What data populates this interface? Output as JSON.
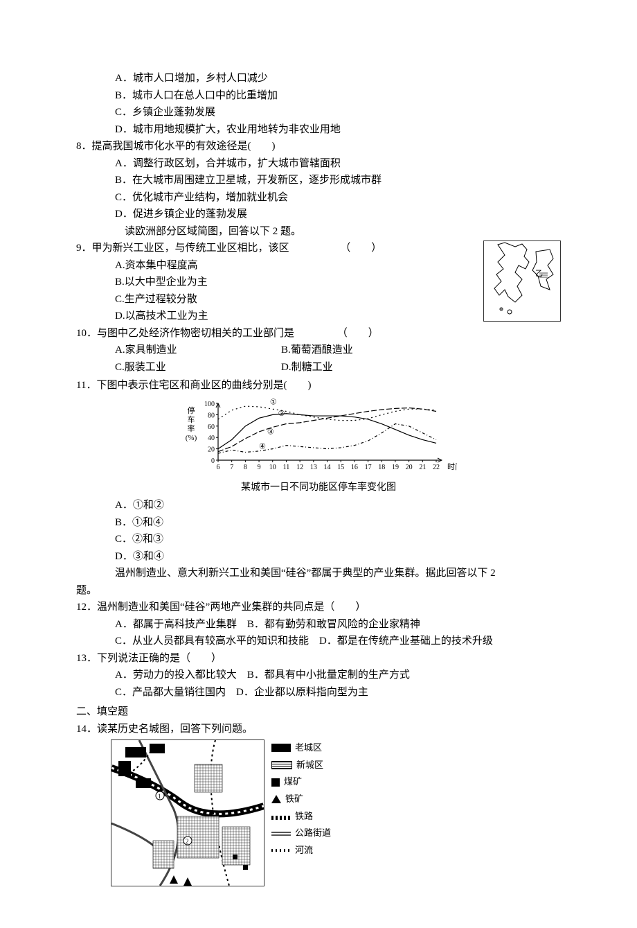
{
  "q7": {
    "A": "A．城市人口增加，乡村人口减少",
    "B": "B．城市人口在总人口中的比重增加",
    "C": "C．乡镇企业蓬勃发展",
    "D": "D．城市用地规模扩大，农业用地转为非农业用地"
  },
  "q8": {
    "stem": "8．提高我国城市化水平的有效途径是(　　)",
    "A": "A．调整行政区划，合并城市，扩大城市管辖面积",
    "B": "B．在大城市周围建立卫星城，开发新区，逐步形成城市群",
    "C": "C．优化城市产业结构，增加就业机会",
    "D": "D．促进乡镇企业的蓬勃发展",
    "lead": "读欧洲部分区域简图，回答以下 2 题。"
  },
  "q9": {
    "stem": "9．甲为新兴工业区，与传统工业区相比，该区",
    "paren": "（　　）",
    "A": "A.资本集中程度高",
    "B": "B.以大中型企业为主",
    "C": "C.生产过程较分散",
    "D": "D.以高技术工业为主"
  },
  "q10": {
    "stem": "10．与图中乙处经济作物密切相关的工业部门是",
    "paren": "（　　）",
    "A": "A.家具制造业",
    "B": "B.葡萄酒酿造业",
    "C": "C.服装工业",
    "D": "D.制糖工业"
  },
  "q11": {
    "stem": "11．下图中表示住宅区和商业区的曲线分别是(　　)",
    "A": "A．①和②",
    "B": "B．①和④",
    "C": "C．②和③",
    "D": "D．③和④",
    "caption": "某城市一日不同功能区停车率变化图",
    "chart": {
      "type": "line",
      "ylabel_lines": [
        "停",
        "车",
        "率",
        "(%)"
      ],
      "xlabel_lines": [
        "时间"
      ],
      "xticks": [
        "6",
        "7",
        "8",
        "9",
        "10",
        "11",
        "12",
        "13",
        "14",
        "15",
        "16",
        "17",
        "18",
        "19",
        "20",
        "21",
        "22"
      ],
      "yticks": [
        0,
        20,
        40,
        60,
        80,
        100
      ],
      "ylim": [
        0,
        100
      ],
      "background_color": "#ffffff",
      "axis_color": "#000000",
      "series_labels": [
        "①",
        "②",
        "③",
        "④"
      ],
      "series": {
        "s1": {
          "dash": "2,4",
          "width": 1.2,
          "points": [
            [
              6,
              72
            ],
            [
              7,
              88
            ],
            [
              8,
              95
            ],
            [
              9,
              94
            ],
            [
              10,
              90
            ],
            [
              11,
              86
            ],
            [
              12,
              80
            ],
            [
              13,
              76
            ],
            [
              14,
              72
            ],
            [
              15,
              70
            ],
            [
              16,
              70
            ],
            [
              17,
              73
            ],
            [
              18,
              80
            ],
            [
              19,
              86
            ],
            [
              20,
              90
            ],
            [
              21,
              90
            ],
            [
              22,
              88
            ]
          ]
        },
        "s2": {
          "dash": "none",
          "width": 1.2,
          "points": [
            [
              6,
              20
            ],
            [
              7,
              36
            ],
            [
              8,
              60
            ],
            [
              9,
              74
            ],
            [
              10,
              80
            ],
            [
              11,
              82
            ],
            [
              12,
              80
            ],
            [
              13,
              78
            ],
            [
              14,
              78
            ],
            [
              15,
              78
            ],
            [
              16,
              76
            ],
            [
              17,
              72
            ],
            [
              18,
              64
            ],
            [
              19,
              54
            ],
            [
              20,
              44
            ],
            [
              21,
              36
            ],
            [
              22,
              30
            ]
          ]
        },
        "s3": {
          "dash": "8,3",
          "width": 1.2,
          "points": [
            [
              6,
              15
            ],
            [
              7,
              24
            ],
            [
              8,
              38
            ],
            [
              9,
              50
            ],
            [
              10,
              58
            ],
            [
              11,
              64
            ],
            [
              12,
              66
            ],
            [
              13,
              70
            ],
            [
              14,
              74
            ],
            [
              15,
              78
            ],
            [
              16,
              82
            ],
            [
              17,
              86
            ],
            [
              18,
              89
            ],
            [
              19,
              91
            ],
            [
              20,
              92
            ],
            [
              21,
              90
            ],
            [
              22,
              86
            ]
          ]
        },
        "s4": {
          "dash": "4,3,1,3",
          "width": 1.2,
          "points": [
            [
              6,
              12
            ],
            [
              7,
              18
            ],
            [
              8,
              14
            ],
            [
              9,
              16
            ],
            [
              10,
              20
            ],
            [
              11,
              26
            ],
            [
              12,
              24
            ],
            [
              13,
              22
            ],
            [
              14,
              20
            ],
            [
              15,
              22
            ],
            [
              16,
              26
            ],
            [
              17,
              34
            ],
            [
              18,
              48
            ],
            [
              19,
              64
            ],
            [
              20,
              60
            ],
            [
              21,
              48
            ],
            [
              22,
              36
            ]
          ]
        }
      },
      "label_pos": {
        "①": [
          9.8,
          98
        ],
        "②": [
          10.4,
          78
        ],
        "③": [
          9.6,
          46
        ],
        "④": [
          9.0,
          20
        ]
      }
    }
  },
  "lead12": "温州制造业、意大利新兴工业和美国“硅谷”都属于典型的产业集群。据此回答以下 2",
  "lead12b": "题。",
  "q12": {
    "stem": "12．温州制造业和美国“硅谷”两地产业集群的共同点是（　　）",
    "A": "A．都属于高科技产业集群　B．都有勤劳和敢冒风险的企业家精神",
    "C": "C．从业人员都具有较高水平的知识和技能　D．都是在传统产业基础上的技术升级"
  },
  "q13": {
    "stem": "13．下列说法正确的是（　　）",
    "A": "A．劳动力的投入都比较大　B．都具有中小批量定制的生产方式",
    "C": "C．产品都大量销往国内　D．企业都以原料指向型为主"
  },
  "section2": "二、填空题",
  "q14": {
    "stem": "14．读某历史名城图，回答下列问题。",
    "legend": {
      "old": "老城区",
      "new": "新城区",
      "coal": "煤矿",
      "iron": "铁矿",
      "rail": "铁路",
      "road": "公路街道",
      "river": "河流"
    }
  }
}
